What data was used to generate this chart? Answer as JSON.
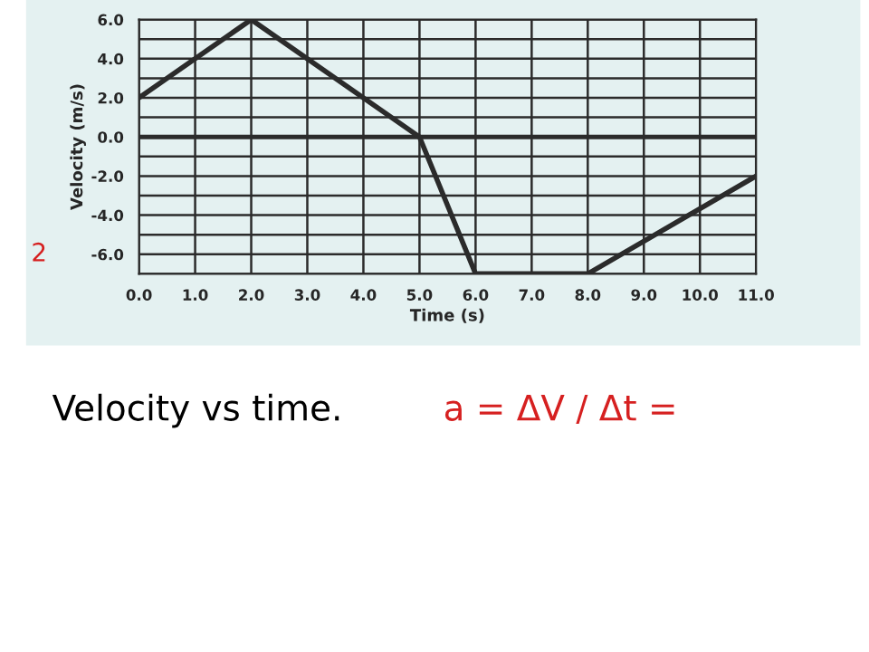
{
  "chart_data": {
    "type": "line",
    "xlabel": "Time (s)",
    "ylabel": "Velocity (m/s)",
    "x": [
      0,
      2,
      5,
      6,
      8,
      11
    ],
    "series": [
      {
        "color": "#2b2b2b",
        "values": [
          2,
          6,
          0,
          -7,
          -7,
          -2
        ]
      }
    ],
    "xlim": [
      0,
      11
    ],
    "ylim": [
      -7,
      6
    ],
    "xticks": [
      {
        "value": 0,
        "label": "0.0"
      },
      {
        "value": 1,
        "label": "1.0"
      },
      {
        "value": 2,
        "label": "2.0"
      },
      {
        "value": 3,
        "label": "3.0"
      },
      {
        "value": 4,
        "label": "4.0"
      },
      {
        "value": 5,
        "label": "5.0"
      },
      {
        "value": 6,
        "label": "6.0"
      },
      {
        "value": 7,
        "label": "7.0"
      },
      {
        "value": 8,
        "label": "8.0"
      },
      {
        "value": 9,
        "label": "9.0"
      },
      {
        "value": 10,
        "label": "10.0"
      },
      {
        "value": 11,
        "label": "11.0"
      }
    ],
    "yticks": [
      {
        "value": -7,
        "label": null
      },
      {
        "value": -6,
        "label": "-6.0"
      },
      {
        "value": -5,
        "label": null
      },
      {
        "value": -4,
        "label": "-4.0"
      },
      {
        "value": -3,
        "label": null
      },
      {
        "value": -2,
        "label": "-2.0"
      },
      {
        "value": -1,
        "label": null
      },
      {
        "value": 0,
        "label": "0.0"
      },
      {
        "value": 1,
        "label": null
      },
      {
        "value": 2,
        "label": "2.0"
      },
      {
        "value": 3,
        "label": null
      },
      {
        "value": 4,
        "label": "4.0"
      },
      {
        "value": 5,
        "label": null
      },
      {
        "value": 6,
        "label": "6.0"
      }
    ],
    "grid": true,
    "marker": "none",
    "line_style": "solid",
    "ref_lines": [
      {
        "axis": "y",
        "value": 0,
        "color": "#2b2b2b"
      }
    ],
    "annotations": [
      "Velocity vs time.",
      "a = ΔV / Δt =",
      "2"
    ]
  }
}
